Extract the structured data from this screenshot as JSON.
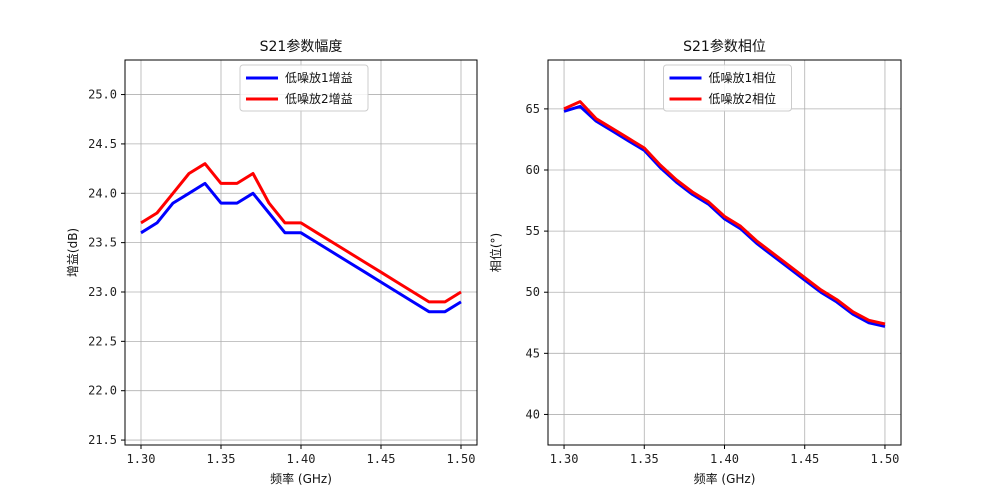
{
  "chart_data": [
    {
      "type": "line",
      "title": "S21参数幅度",
      "xlabel": "频率 (GHz)",
      "ylabel": "增益(dB)",
      "xlim": [
        1.29,
        1.51
      ],
      "ylim": [
        21.45,
        25.35
      ],
      "xticks": [
        1.3,
        1.35,
        1.4,
        1.45,
        1.5
      ],
      "xtick_labels": [
        "1.30",
        "1.35",
        "1.40",
        "1.45",
        "1.50"
      ],
      "yticks": [
        21.5,
        22.0,
        22.5,
        23.0,
        23.5,
        24.0,
        24.5,
        25.0
      ],
      "ytick_labels": [
        "21.5",
        "22.0",
        "22.5",
        "23.0",
        "23.5",
        "24.0",
        "24.5",
        "25.0"
      ],
      "grid": true,
      "legend_position": "upper-center",
      "x": [
        1.3,
        1.31,
        1.32,
        1.33,
        1.34,
        1.35,
        1.36,
        1.37,
        1.38,
        1.39,
        1.4,
        1.41,
        1.42,
        1.43,
        1.44,
        1.45,
        1.46,
        1.47,
        1.48,
        1.49,
        1.5
      ],
      "series": [
        {
          "name": "低噪放1增益",
          "color": "#0000ff",
          "values": [
            23.6,
            23.7,
            23.9,
            24.0,
            24.1,
            23.9,
            23.9,
            24.0,
            23.8,
            23.6,
            23.6,
            23.5,
            23.4,
            23.3,
            23.2,
            23.1,
            23.0,
            22.9,
            22.8,
            22.8,
            22.9
          ]
        },
        {
          "name": "低噪放2增益",
          "color": "#ff0000",
          "values": [
            23.7,
            23.8,
            24.0,
            24.2,
            24.3,
            24.1,
            24.1,
            24.2,
            23.9,
            23.7,
            23.7,
            23.6,
            23.5,
            23.4,
            23.3,
            23.2,
            23.1,
            23.0,
            22.9,
            22.9,
            23.0
          ]
        }
      ]
    },
    {
      "type": "line",
      "title": "S21参数相位",
      "xlabel": "频率 (GHz)",
      "ylabel": "相位(°)",
      "xlim": [
        1.29,
        1.51
      ],
      "ylim": [
        37.5,
        69.0
      ],
      "xticks": [
        1.3,
        1.35,
        1.4,
        1.45,
        1.5
      ],
      "xtick_labels": [
        "1.30",
        "1.35",
        "1.40",
        "1.45",
        "1.50"
      ],
      "yticks": [
        40,
        45,
        50,
        55,
        60,
        65
      ],
      "ytick_labels": [
        "40",
        "45",
        "50",
        "55",
        "60",
        "65"
      ],
      "grid": true,
      "legend_position": "upper-center",
      "x": [
        1.3,
        1.31,
        1.32,
        1.33,
        1.34,
        1.35,
        1.36,
        1.37,
        1.38,
        1.39,
        1.4,
        1.41,
        1.42,
        1.43,
        1.44,
        1.45,
        1.46,
        1.47,
        1.48,
        1.49,
        1.5
      ],
      "series": [
        {
          "name": "低噪放1相位",
          "color": "#0000ff",
          "values": [
            64.8,
            65.2,
            64.0,
            63.2,
            62.4,
            61.6,
            60.2,
            59.0,
            58.0,
            57.2,
            56.0,
            55.2,
            54.0,
            53.0,
            52.0,
            51.0,
            50.0,
            49.2,
            48.2,
            47.5,
            47.2
          ]
        },
        {
          "name": "低噪放2相位",
          "color": "#ff0000",
          "values": [
            65.0,
            65.6,
            64.2,
            63.4,
            62.6,
            61.8,
            60.4,
            59.2,
            58.2,
            57.4,
            56.2,
            55.4,
            54.2,
            53.2,
            52.2,
            51.2,
            50.2,
            49.4,
            48.4,
            47.7,
            47.4
          ]
        }
      ]
    }
  ]
}
